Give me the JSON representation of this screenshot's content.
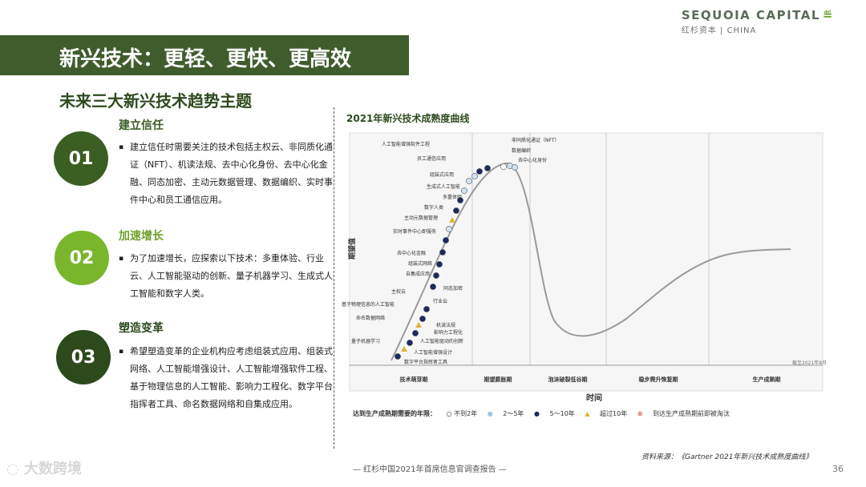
{
  "brand": {
    "name": "SEQUOIA CAPITAL",
    "sub": "红杉资本 | CHINA"
  },
  "page_title": "新兴技术：更轻、更快、更高效",
  "subtitle": "未来三大新兴技术趋势主题",
  "sections": [
    {
      "num": "01",
      "title": "建立信任",
      "body": "建立信任时需要关注的技术包括主权云、非同质化通证（NFT）、机读法规、去中心化身份、去中心化金融、同态加密、主动元数据管理、数据编织、实时事件中心和员工通信应用。"
    },
    {
      "num": "02",
      "title": "加速增长",
      "body": "为了加速增长，应探索以下技术：多重体验、行业云、人工智能驱动的创新、量子机器学习、生成式人工智能和数字人类。"
    },
    {
      "num": "03",
      "title": "塑造变革",
      "body": "希望塑造变革的企业机构应考虑组装式应用、组装式网络、人工智能增强设计、人工智能增强软件工程、基于物理信息的人工智能、影响力工程化、数字平台指挥者工具、命名数据网络和自集成应用。"
    }
  ],
  "chart_data": {
    "type": "line",
    "title": "2021年新兴技术成熟度曲线",
    "xlabel": "时间",
    "ylabel": "期望值",
    "phases": [
      "技术萌芽期",
      "期望膨胀期",
      "泡沫破裂低谷期",
      "稳步爬升恢复期",
      "生产成熟期"
    ],
    "date_note": "截至2021年8月",
    "labels_left": [
      "人工智能增强软件工程",
      "员工通信应用",
      "组装式应用",
      "生成式人工智能",
      "多重体验",
      "数字人类",
      "主动元数据管理",
      "实时事件中心即服务",
      "去中心化金融",
      "组装式网络",
      "自集成应用",
      "主权云",
      "基于物理信息的人工智能",
      "命名数据网络",
      "量子机器学习"
    ],
    "labels_right": [
      "非同质化通证（NFT）",
      "数据编织",
      "去中心化身份",
      "同态加密",
      "行业云",
      "机读法规",
      "影响力工程化",
      "人工智能驱动的创新",
      "人工智能增强设计",
      "数字平台指挥者工具"
    ],
    "legend_title": "达到生产成熟期需要的年限：",
    "legend": [
      "不到2年",
      "2～5年",
      "5～10年",
      "超过10年",
      "到达生产成熟期前即被淘汰"
    ],
    "colors": {
      "lt2": "#ffffff",
      "y2to5": "#cfe3f2",
      "y5to10": "#1b2a5e",
      "gt10": "#e2b23a",
      "obsolete": "#d23b3b"
    }
  },
  "source": "资料来源：《Gartner 2021年新兴技术成熟度曲线》",
  "footer": "— 红杉中国2021年首席信息官调查报告 —",
  "page_number": "36",
  "logo_text": "大数跨境"
}
